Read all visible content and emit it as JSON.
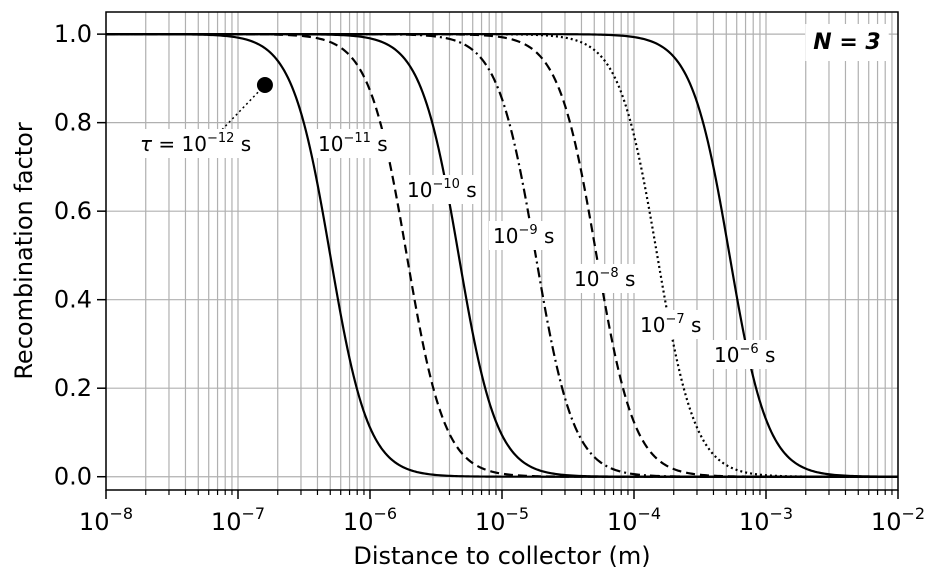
{
  "chart_data": {
    "type": "line",
    "xlabel": "Distance to collector (m)",
    "ylabel": "Recombination factor",
    "xscale": "log",
    "xlim": [
      1e-08,
      0.01
    ],
    "ylim": [
      -0.03,
      1.05
    ],
    "grid": true,
    "xticks": [
      {
        "value": 1e-08,
        "base": "10",
        "exp": "−8"
      },
      {
        "value": 1e-07,
        "base": "10",
        "exp": "−7"
      },
      {
        "value": 1e-06,
        "base": "10",
        "exp": "−6"
      },
      {
        "value": 1e-05,
        "base": "10",
        "exp": "−5"
      },
      {
        "value": 0.0001,
        "base": "10",
        "exp": "−4"
      },
      {
        "value": 0.001,
        "base": "10",
        "exp": "−3"
      },
      {
        "value": 0.01,
        "base": "10",
        "exp": "−2"
      }
    ],
    "yticks": [
      "0.0",
      "0.2",
      "0.4",
      "0.6",
      "0.8",
      "1.0"
    ],
    "corner_label": {
      "text": "N = 3",
      "placement": "top-right"
    },
    "series": [
      {
        "tau": "1e-12",
        "style": "solid",
        "x50": 5e-07,
        "label": {
          "prefix": "τ = ",
          "base": "10",
          "exp": "−12",
          "unit": " s"
        }
      },
      {
        "tau": "1e-11",
        "style": "dashed",
        "x50": 1.9e-06,
        "label": {
          "prefix": "",
          "base": "10",
          "exp": "−11",
          "unit": " s"
        }
      },
      {
        "tau": "1e-10",
        "style": "solid",
        "x50": 4.7e-06,
        "label": {
          "prefix": "",
          "base": "10",
          "exp": "−10",
          "unit": " s"
        }
      },
      {
        "tau": "1e-9",
        "style": "dashdot",
        "x50": 1.8e-05,
        "label": {
          "prefix": "",
          "base": "10",
          "exp": "−9",
          "unit": " s"
        }
      },
      {
        "tau": "1e-8",
        "style": "dashed",
        "x50": 5.2e-05,
        "label": {
          "prefix": "",
          "base": "10",
          "exp": "−8",
          "unit": " s"
        }
      },
      {
        "tau": "1e-7",
        "style": "dotted",
        "x50": 0.00015,
        "label": {
          "prefix": "",
          "base": "10",
          "exp": "−7",
          "unit": " s"
        }
      },
      {
        "tau": "1e-6",
        "style": "solid",
        "x50": 0.00053,
        "label": {
          "prefix": "",
          "base": "10",
          "exp": "−6",
          "unit": " s"
        }
      }
    ],
    "annotation_point": {
      "x": 1.6e-07,
      "y": 0.885
    }
  }
}
